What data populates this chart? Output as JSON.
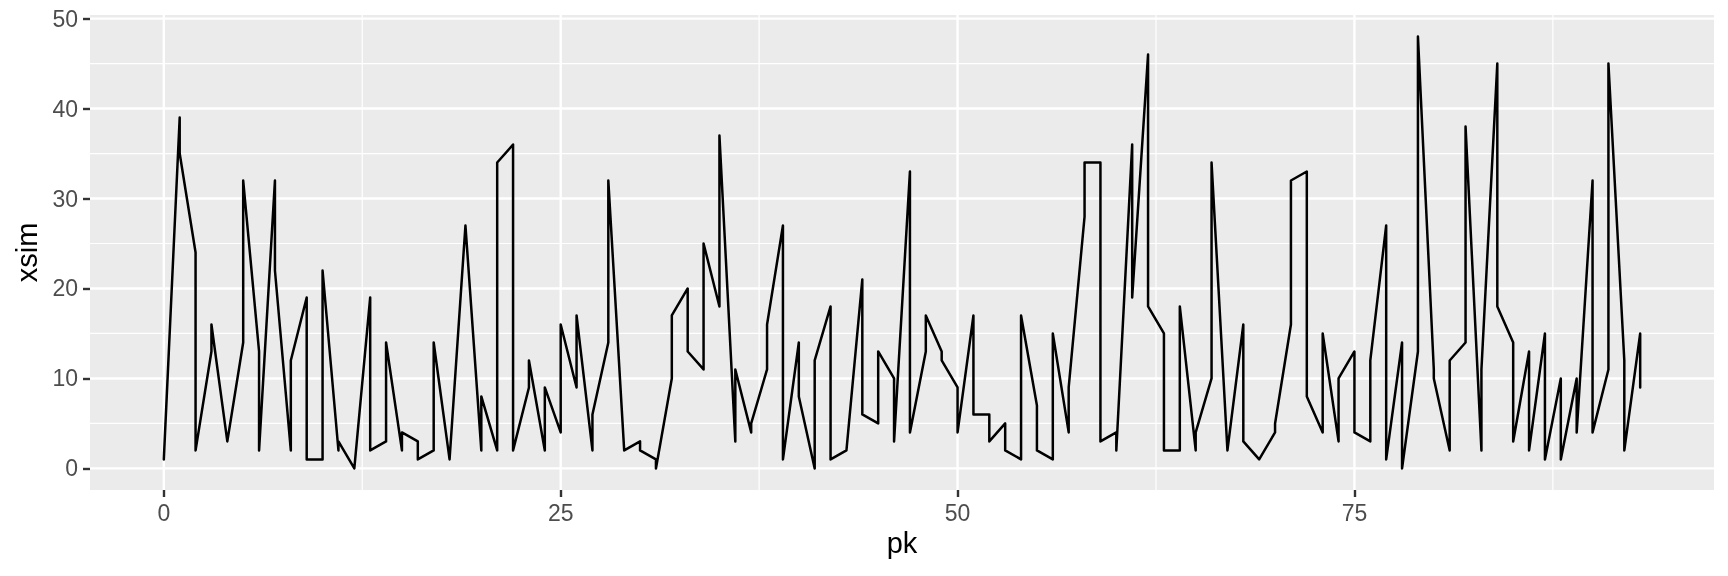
{
  "chart_data": {
    "type": "line",
    "xlabel": "pk",
    "ylabel": "xsim",
    "x": [
      0,
      1,
      1,
      2,
      2,
      3,
      3,
      4,
      5,
      5,
      6,
      6,
      7,
      7,
      8,
      8,
      9,
      9,
      10,
      10,
      11,
      11,
      12,
      13,
      13,
      14,
      14,
      15,
      15,
      16,
      16,
      17,
      17,
      18,
      19,
      20,
      20,
      21,
      21,
      22,
      22,
      23,
      23,
      24,
      24,
      25,
      25,
      26,
      26,
      27,
      27,
      28,
      28,
      29,
      30,
      30,
      31,
      31,
      32,
      32,
      33,
      33,
      34,
      34,
      35,
      35,
      36,
      36,
      37,
      37,
      38,
      38,
      39,
      39,
      40,
      40,
      41,
      41,
      42,
      42,
      43,
      44,
      44,
      45,
      45,
      46,
      46,
      47,
      47,
      48,
      48,
      49,
      49,
      50,
      50,
      51,
      51,
      52,
      52,
      53,
      53,
      54,
      54,
      55,
      55,
      56,
      56,
      57,
      57,
      58,
      58,
      59,
      59,
      60,
      60,
      61,
      61,
      62,
      62,
      63,
      63,
      64,
      64,
      65,
      65,
      66,
      66,
      67,
      68,
      68,
      69,
      70,
      70,
      71,
      71,
      72,
      72,
      73,
      73,
      74,
      74,
      75,
      75,
      76,
      76,
      77,
      77,
      78,
      78,
      79,
      79,
      80,
      80,
      81,
      81,
      82,
      82,
      83,
      83,
      84,
      84,
      85,
      85,
      86,
      86,
      87,
      87,
      88,
      88,
      89,
      89,
      90,
      90,
      91,
      91,
      92,
      92,
      93,
      93
    ],
    "values": [
      1,
      39,
      35,
      24,
      2,
      13,
      16,
      3,
      14,
      32,
      13,
      2,
      32,
      22,
      2,
      12,
      19,
      1,
      1,
      22,
      2,
      3,
      0,
      19,
      2,
      3,
      14,
      2,
      4,
      3,
      1,
      2,
      14,
      1,
      27,
      2,
      8,
      2,
      34,
      36,
      2,
      9,
      12,
      2,
      9,
      4,
      16,
      9,
      17,
      2,
      6,
      14,
      32,
      2,
      3,
      2,
      1,
      0,
      10,
      17,
      20,
      13,
      11,
      25,
      18,
      37,
      3,
      11,
      4,
      5,
      11,
      16,
      27,
      1,
      14,
      8,
      0,
      12,
      18,
      1,
      2,
      21,
      6,
      5,
      13,
      10,
      3,
      33,
      4,
      13,
      17,
      13,
      12,
      9,
      4,
      17,
      6,
      6,
      3,
      5,
      2,
      1,
      17,
      7,
      2,
      1,
      15,
      4,
      9,
      28,
      34,
      34,
      3,
      4,
      2,
      36,
      19,
      46,
      18,
      15,
      2,
      2,
      18,
      2,
      4,
      10,
      34,
      2,
      16,
      3,
      1,
      4,
      5,
      16,
      32,
      33,
      8,
      4,
      15,
      3,
      10,
      13,
      4,
      3,
      12,
      27,
      1,
      14,
      0,
      13,
      48,
      11,
      10,
      2,
      12,
      14,
      38,
      2,
      11,
      45,
      18,
      14,
      3,
      13,
      2,
      15,
      1,
      10,
      1,
      10,
      4,
      32,
      4,
      11,
      45,
      12,
      2,
      15,
      9
    ],
    "color": "#000000",
    "marker": "none",
    "line_style": "solid",
    "xlim": [
      -4.65,
      97.65
    ],
    "xticks": [
      0,
      {
        "value": 12.5,
        "label": null
      },
      25,
      {
        "value": 37.5,
        "label": null
      },
      50,
      {
        "value": 62.5,
        "label": null
      },
      75,
      {
        "value": 87.5,
        "label": null
      }
    ],
    "ylim": [
      -2.4,
      50.4
    ],
    "yticks": [
      0,
      {
        "value": 5,
        "label": null
      },
      10,
      {
        "value": 15,
        "label": null
      },
      20,
      {
        "value": 25,
        "label": null
      },
      30,
      {
        "value": 35,
        "label": null
      },
      40,
      {
        "value": 45,
        "label": null
      },
      50
    ],
    "grid": true
  }
}
